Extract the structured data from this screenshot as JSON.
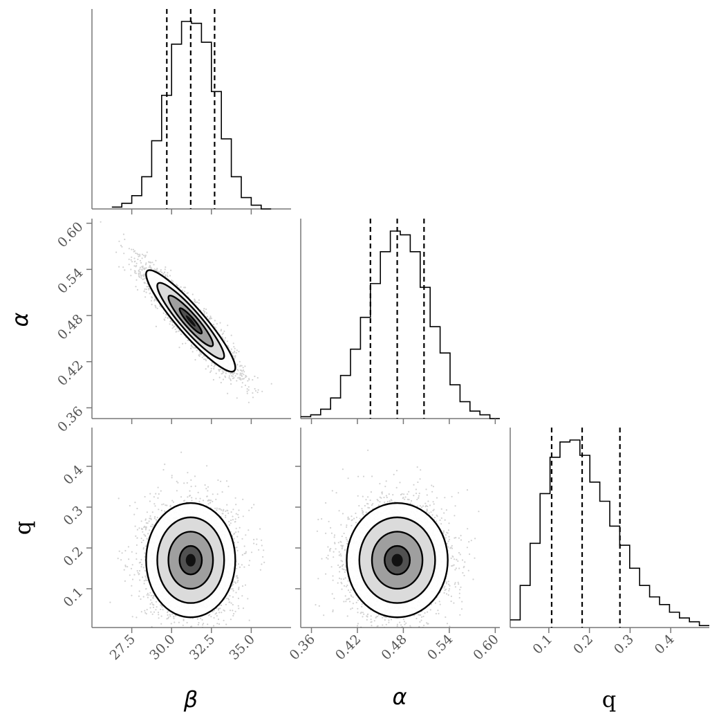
{
  "chart_data": {
    "type": "corner",
    "parameters": [
      {
        "key": "beta",
        "label": "β",
        "range": [
          25.0,
          37.5
        ],
        "ticks": [
          27.5,
          30.0,
          32.5,
          35.0
        ],
        "tick_labels": [
          "27.5",
          "30.0",
          "32.5",
          "35.0"
        ]
      },
      {
        "key": "alpha",
        "label": "α",
        "range": [
          0.346,
          0.606
        ],
        "ticks": [
          0.36,
          0.42,
          0.48,
          0.54,
          0.6
        ],
        "tick_labels": [
          "0.36",
          "0.42",
          "0.48",
          "0.54",
          "0.60"
        ]
      },
      {
        "key": "q",
        "label": "q",
        "range": [
          0.005,
          0.495
        ],
        "ticks": [
          0.1,
          0.2,
          0.3,
          0.4
        ],
        "tick_labels": [
          "0.1",
          "0.2",
          "0.3",
          "0.4"
        ]
      }
    ],
    "quantile_lines": {
      "beta": [
        29.7,
        31.2,
        32.7
      ],
      "alpha": [
        0.437,
        0.472,
        0.507
      ],
      "q": [
        0.107,
        0.182,
        0.275
      ]
    },
    "histograms": {
      "beta": {
        "bin_edges": [
          26.25,
          26.875,
          27.5,
          28.125,
          28.75,
          29.375,
          30.0,
          30.625,
          31.25,
          31.875,
          32.5,
          33.125,
          33.75,
          34.375,
          35.0,
          35.625,
          36.25
        ],
        "counts": [
          1,
          3,
          7,
          17,
          36,
          60,
          87,
          99,
          98,
          88,
          62,
          37,
          17,
          6,
          2,
          0
        ]
      },
      "alpha": {
        "bin_edges": [
          0.346,
          0.359,
          0.372,
          0.385,
          0.398,
          0.411,
          0.424,
          0.437,
          0.45,
          0.463,
          0.476,
          0.489,
          0.502,
          0.515,
          0.528,
          0.541,
          0.554,
          0.567,
          0.58,
          0.593,
          0.606
        ],
        "counts": [
          1,
          2,
          5,
          11,
          23,
          37,
          54,
          72,
          89,
          100,
          98,
          89,
          70,
          49,
          35,
          18,
          9,
          4,
          2,
          0
        ]
      },
      "q": {
        "bin_edges": [
          0.005,
          0.0295,
          0.054,
          0.0785,
          0.103,
          0.1275,
          0.152,
          0.1765,
          0.201,
          0.2255,
          0.25,
          0.2745,
          0.299,
          0.3235,
          0.348,
          0.3725,
          0.397,
          0.4215,
          0.446,
          0.4705,
          0.495
        ],
        "counts": [
          4,
          22,
          44,
          70,
          89,
          97,
          98,
          90,
          76,
          66,
          53,
          43,
          31,
          22,
          16,
          12,
          8,
          5,
          3,
          1
        ]
      }
    },
    "joint_distributions": [
      {
        "x": "beta",
        "y": "alpha",
        "mean_x": 31.2,
        "mean_y": 0.473,
        "sd_x": 1.4,
        "sd_y": 0.033,
        "correlation": -0.92
      },
      {
        "x": "beta",
        "y": "q",
        "mean_x": 31.2,
        "mean_y": 0.17,
        "sd_x": 1.4,
        "sd_y": 0.07,
        "correlation": 0.0
      },
      {
        "x": "alpha",
        "y": "q",
        "mean_x": 0.472,
        "mean_y": 0.17,
        "sd_x": 0.033,
        "sd_y": 0.07,
        "correlation": 0.0
      }
    ],
    "contour_levels": [
      "0.5σ",
      "1σ",
      "1.5σ",
      "2σ"
    ],
    "colors": {
      "density": "#000000",
      "axes": "#777777",
      "quantile_line": "#000000"
    },
    "grid": false
  }
}
